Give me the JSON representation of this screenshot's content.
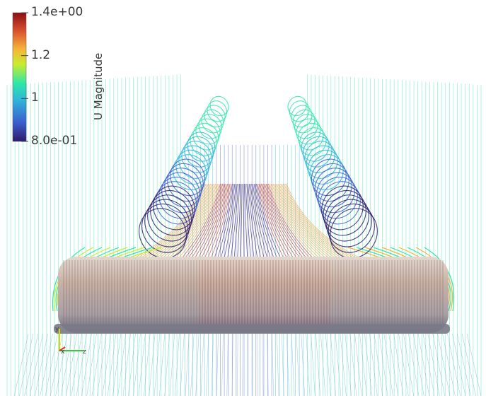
{
  "legend": {
    "title": "U Magnitude",
    "ticks": [
      {
        "label": "1.4e+00",
        "value": 1.4
      },
      {
        "label": "1.2",
        "value": 1.2
      },
      {
        "label": "1",
        "value": 1.0
      },
      {
        "label": "8.0e-01",
        "value": 0.8
      }
    ],
    "range": [
      0.8,
      1.4
    ],
    "colormap": [
      "#2d1b6b",
      "#3b5fd0",
      "#2fb9d8",
      "#2ee6a8",
      "#c9ec2e",
      "#f5b33a",
      "#d8502e",
      "#8c0f12"
    ]
  },
  "axes": {
    "y_label": "y",
    "x_label": "x",
    "z_label": "z",
    "colors": {
      "y": "#d8d800",
      "x": "#e8322a",
      "z": "#3cc83c"
    }
  },
  "scene": {
    "background": "#ffffff",
    "cylinder_color": "#b9a79a",
    "streamline_colors": {
      "far": "#2ee6a8",
      "mid": "#2fb9d8",
      "low": "#3b5fd0",
      "core": "#2d1b6b",
      "hot": "#b13020"
    }
  }
}
